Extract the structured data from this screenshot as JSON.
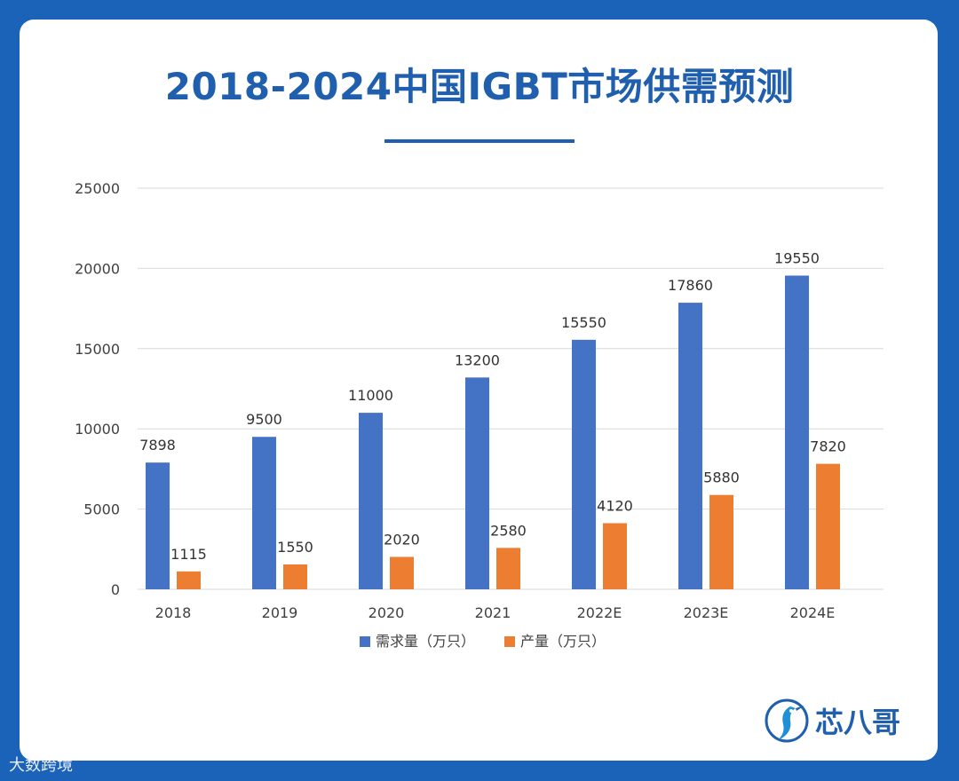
{
  "page": {
    "title": "2018-2024中国IGBT市场供需预测",
    "brand_name": "芯八哥",
    "footer_watermark": "大数跨境"
  },
  "colors": {
    "background": "#1b63b8",
    "title": "#1f5fad",
    "demand": "#4472c4",
    "production": "#ed7d31",
    "grid": "#d9d9d9"
  },
  "chart_data": {
    "type": "bar",
    "title": "2018-2024中国IGBT市场供需预测",
    "categories": [
      "2018",
      "2019",
      "2020",
      "2021",
      "2022E",
      "2023E",
      "2024E"
    ],
    "series": [
      {
        "name": "需求量（万只）",
        "values": [
          7898,
          9500,
          11000,
          13200,
          15550,
          17860,
          19550
        ]
      },
      {
        "name": "产量（万只）",
        "values": [
          1115,
          1550,
          2020,
          2580,
          4120,
          5880,
          7820
        ]
      }
    ],
    "ylim": [
      0,
      25000
    ],
    "yticks": [
      "0",
      "5000",
      "10000",
      "15000",
      "20000",
      "25000"
    ],
    "grid": true,
    "legend": "bottom"
  }
}
